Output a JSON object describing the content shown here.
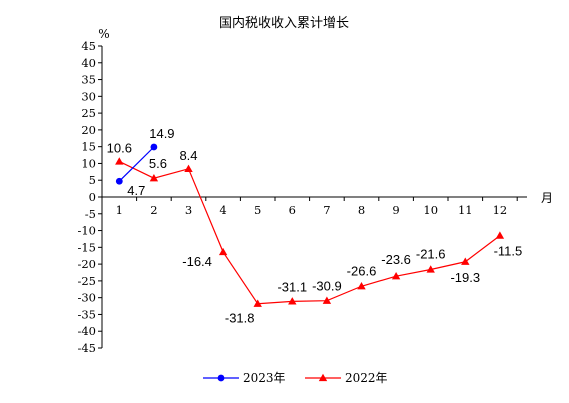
{
  "chart_data": {
    "type": "line",
    "title": "国内税收收入累计增长",
    "y_unit_label": "%",
    "x_unit_label": "月",
    "categories": [
      "1",
      "2",
      "3",
      "4",
      "5",
      "6",
      "7",
      "8",
      "9",
      "10",
      "11",
      "12"
    ],
    "ylim": [
      -45,
      45
    ],
    "ytick_step": 5,
    "grid": false,
    "legend_position": "bottom",
    "series": [
      {
        "name": "2023年",
        "color": "#0000ff",
        "marker": "circle",
        "x": [
          1,
          2
        ],
        "values": [
          4.7,
          14.9
        ]
      },
      {
        "name": "2022年",
        "color": "#ff0000",
        "marker": "triangle",
        "x": [
          1,
          2,
          3,
          4,
          5,
          6,
          7,
          8,
          9,
          10,
          11,
          12
        ],
        "values": [
          10.6,
          5.6,
          8.4,
          -16.4,
          -31.8,
          -31.1,
          -30.9,
          -26.6,
          -23.6,
          -21.6,
          -19.3,
          -11.5
        ]
      }
    ],
    "data_labels": [
      {
        "series": 0,
        "x": 1,
        "text": "4.7"
      },
      {
        "series": 0,
        "x": 2,
        "text": "14.9"
      },
      {
        "series": 1,
        "x": 1,
        "text": "10.6"
      },
      {
        "series": 1,
        "x": 2,
        "text": "5.6"
      },
      {
        "series": 1,
        "x": 3,
        "text": "8.4"
      },
      {
        "series": 1,
        "x": 4,
        "text": "-16.4"
      },
      {
        "series": 1,
        "x": 5,
        "text": "-31.8"
      },
      {
        "series": 1,
        "x": 6,
        "text": "-31.1"
      },
      {
        "series": 1,
        "x": 7,
        "text": "-30.9"
      },
      {
        "series": 1,
        "x": 8,
        "text": "-26.6"
      },
      {
        "series": 1,
        "x": 9,
        "text": "-23.6"
      },
      {
        "series": 1,
        "x": 10,
        "text": "-21.6"
      },
      {
        "series": 1,
        "x": 11,
        "text": "-19.3"
      },
      {
        "series": 1,
        "x": 12,
        "text": "-11.5"
      }
    ]
  }
}
